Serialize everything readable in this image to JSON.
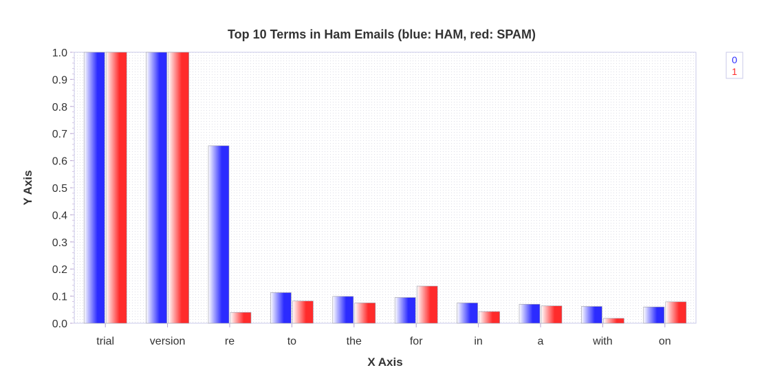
{
  "chart_data": {
    "type": "bar",
    "title": "Top 10 Terms in Ham Emails (blue: HAM, red: SPAM)",
    "xlabel": "X Axis",
    "ylabel": "Y Axis",
    "categories": [
      "trial",
      "version",
      "re",
      "to",
      "the",
      "for",
      "in",
      "a",
      "with",
      "on"
    ],
    "series": [
      {
        "name": "0",
        "color": "#2b2bff",
        "values": [
          1.0,
          1.0,
          0.655,
          0.113,
          0.099,
          0.095,
          0.075,
          0.07,
          0.062,
          0.06
        ]
      },
      {
        "name": "1",
        "color": "#ff2b2b",
        "values": [
          1.0,
          1.0,
          0.04,
          0.082,
          0.075,
          0.137,
          0.043,
          0.064,
          0.018,
          0.079
        ]
      }
    ],
    "ylim": [
      0.0,
      1.0
    ],
    "yticks": [
      "0.0",
      "0.1",
      "0.2",
      "0.3",
      "0.4",
      "0.5",
      "0.6",
      "0.7",
      "0.8",
      "0.9",
      "1.0"
    ],
    "legend": "top-right",
    "grid": true
  }
}
